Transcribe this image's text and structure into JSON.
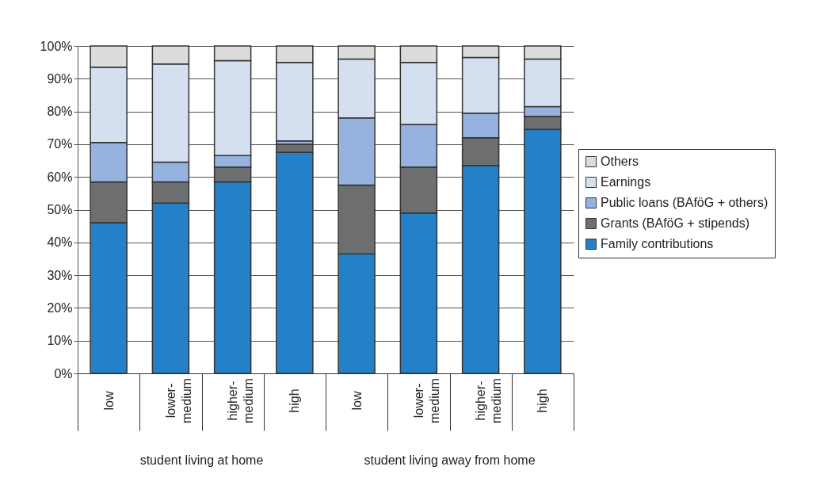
{
  "chart_data": {
    "type": "bar",
    "stacked": true,
    "categories": [
      "low",
      "lower-medium",
      "higher-medium",
      "high",
      "low",
      "lower-medium",
      "higher-medium",
      "high"
    ],
    "series": [
      {
        "name": "Family contributions",
        "color": "#2581c7",
        "values": [
          46,
          52,
          58.5,
          67.5,
          36.5,
          49,
          63.5,
          74.5
        ]
      },
      {
        "name": "Grants (BAföG + stipends)",
        "color": "#6d6e70",
        "values": [
          12.5,
          6.5,
          4.5,
          2.5,
          21,
          14,
          8.5,
          4
        ]
      },
      {
        "name": "Public loans (BAföG + others)",
        "color": "#95b3de",
        "values": [
          12,
          6,
          3.5,
          1,
          20.5,
          13,
          7.5,
          3
        ]
      },
      {
        "name": "Earnings",
        "color": "#d4dff0",
        "values": [
          23,
          30,
          29,
          24,
          18,
          19,
          17,
          14.5
        ]
      },
      {
        "name": "Others",
        "color": "#dcdcdc",
        "values": [
          6.5,
          5.5,
          4.5,
          5,
          4,
          5,
          3.5,
          4
        ]
      }
    ],
    "ylim": [
      0,
      100
    ],
    "yticks": [
      {
        "value": 0,
        "label": "0%"
      },
      {
        "value": 10,
        "label": "10%"
      },
      {
        "value": 20,
        "label": "20%"
      },
      {
        "value": 30,
        "label": "30%"
      },
      {
        "value": 40,
        "label": "40%"
      },
      {
        "value": 50,
        "label": "50%"
      },
      {
        "value": 60,
        "label": "60%"
      },
      {
        "value": 70,
        "label": "70%"
      },
      {
        "value": 80,
        "label": "80%"
      },
      {
        "value": 90,
        "label": "90%"
      },
      {
        "value": 100,
        "label": "100%"
      }
    ],
    "grid": "y",
    "legend": "right",
    "annotations": [
      "student living at home",
      "student living away from home"
    ]
  }
}
